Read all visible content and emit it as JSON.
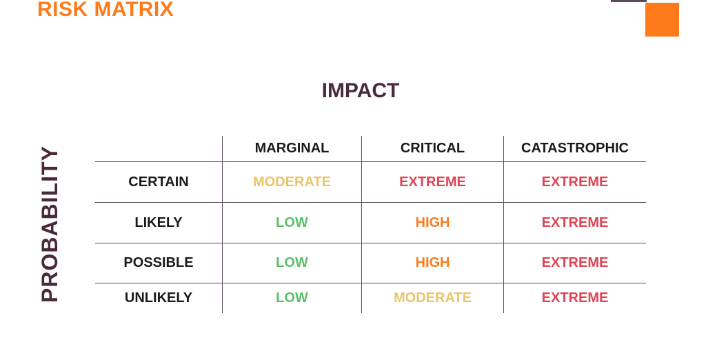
{
  "page": {
    "title": "RISK MATRIX"
  },
  "axes": {
    "column_title": "IMPACT",
    "row_title": "PROBABILITY"
  },
  "matrix": {
    "columns": [
      "MARGINAL",
      "CRITICAL",
      "CATASTROPHIC"
    ],
    "rows": [
      {
        "label": "CERTAIN",
        "values": [
          "MODERATE",
          "EXTREME",
          "EXTREME"
        ]
      },
      {
        "label": "LIKELY",
        "values": [
          "LOW",
          "HIGH",
          "EXTREME"
        ]
      },
      {
        "label": "POSSIBLE",
        "values": [
          "LOW",
          "HIGH",
          "EXTREME"
        ]
      },
      {
        "label": "UNLIKELY",
        "values": [
          "LOW",
          "MODERATE",
          "EXTREME"
        ]
      }
    ]
  },
  "colors": {
    "accent_orange": "#ff7a1a",
    "title_plum": "#4a2a3a",
    "low": "#5cbf6a",
    "moderate": "#e8c56a",
    "high": "#ff7a1a",
    "extreme": "#e04454"
  }
}
